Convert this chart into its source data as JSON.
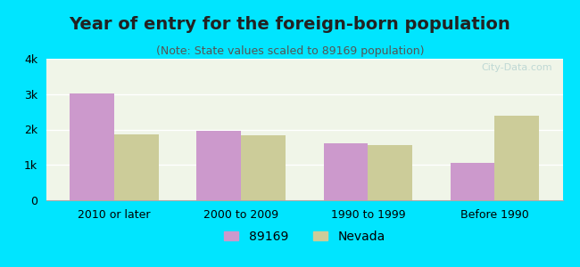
{
  "title": "Year of entry for the foreign-born population",
  "subtitle": "(Note: State values scaled to 89169 population)",
  "categories": [
    "2010 or later",
    "2000 to 2009",
    "1990 to 1999",
    "Before 1990"
  ],
  "values_89169": [
    3010,
    1950,
    1600,
    1050
  ],
  "values_nevada": [
    1850,
    1840,
    1550,
    2400
  ],
  "bar_color_89169": "#cc99cc",
  "bar_color_nevada": "#cccc99",
  "background_outer": "#00e5ff",
  "background_inner": "#f0f5e8",
  "ylim": [
    0,
    4000
  ],
  "yticks": [
    0,
    1000,
    2000,
    3000,
    4000
  ],
  "ytick_labels": [
    "0",
    "1k",
    "2k",
    "3k",
    "4k"
  ],
  "legend_label_89169": "89169",
  "legend_label_nevada": "Nevada",
  "bar_width": 0.35,
  "title_fontsize": 14,
  "subtitle_fontsize": 9,
  "watermark": "City-Data.com"
}
